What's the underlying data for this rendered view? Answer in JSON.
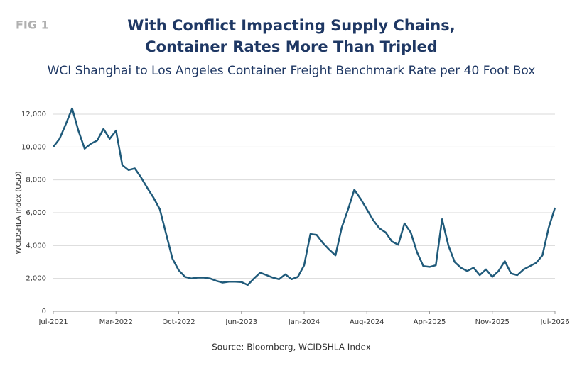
{
  "figure_label": "FIG 1",
  "chart_data": {
    "type": "line",
    "title": [
      "With Conflict Impacting Supply Chains,",
      "Container Rates More Than Tripled"
    ],
    "subtitle": "WCI Shanghai to Los Angeles Container Freight Benchmark Rate per 40 Foot Box",
    "y_label": "WCIDSHLA Index (USD)",
    "source": "Source: Bloomberg, WCIDSHLA Index",
    "categories": [
      "Jul-2021",
      null,
      null,
      null,
      null,
      null,
      null,
      null,
      null,
      null,
      "Mar-2022",
      null,
      null,
      null,
      null,
      null,
      null,
      null,
      null,
      null,
      "Oct-2022",
      null,
      null,
      null,
      null,
      null,
      null,
      null,
      null,
      null,
      "Jun-2023",
      null,
      null,
      null,
      null,
      null,
      null,
      null,
      null,
      null,
      "Jan-2024",
      null,
      null,
      null,
      null,
      null,
      null,
      null,
      null,
      null,
      "Aug-2024",
      null,
      null,
      null,
      null,
      null,
      null,
      null,
      null,
      null,
      "Apr-2025",
      null,
      null,
      null,
      null,
      null,
      null,
      null,
      null,
      null,
      "Nov-2025",
      null,
      null,
      null,
      null,
      null,
      null,
      null,
      null,
      null,
      "Jul-2026"
    ],
    "series": [
      {
        "name": "WCIDSHLA Index",
        "color": "#1f5a7a",
        "values": [
          10000,
          10500,
          11400,
          12350,
          11000,
          9900,
          10200,
          10400,
          11100,
          10500,
          11000,
          8900,
          8600,
          8700,
          8150,
          7500,
          6900,
          6200,
          4700,
          3200,
          2500,
          2100,
          2000,
          2050,
          2050,
          2000,
          1850,
          1750,
          1800,
          1800,
          1780,
          1600,
          2000,
          2350,
          2200,
          2050,
          1950,
          2250,
          1950,
          2100,
          2800,
          4700,
          4650,
          4150,
          3750,
          3400,
          5100,
          6200,
          7400,
          6850,
          6200,
          5550,
          5050,
          4800,
          4250,
          4050,
          5350,
          4800,
          3600,
          2750,
          2700,
          2800,
          5600,
          4000,
          3000,
          2650,
          2450,
          2650,
          2200,
          2550,
          2100,
          2450,
          3050,
          2300,
          2200,
          2550,
          2750,
          2950,
          3400,
          5100,
          6300
        ]
      }
    ],
    "ylim": [
      0,
      12000
    ],
    "yticks": [
      0,
      {
        "value": 2000,
        "label": "2,000"
      },
      {
        "value": 4000,
        "label": "4,000"
      },
      {
        "value": 6000,
        "label": "6,000"
      },
      {
        "value": 8000,
        "label": "8,000"
      },
      {
        "value": 10000,
        "label": "10,000"
      },
      {
        "value": 12000,
        "label": "12,000"
      }
    ],
    "grid": true
  }
}
